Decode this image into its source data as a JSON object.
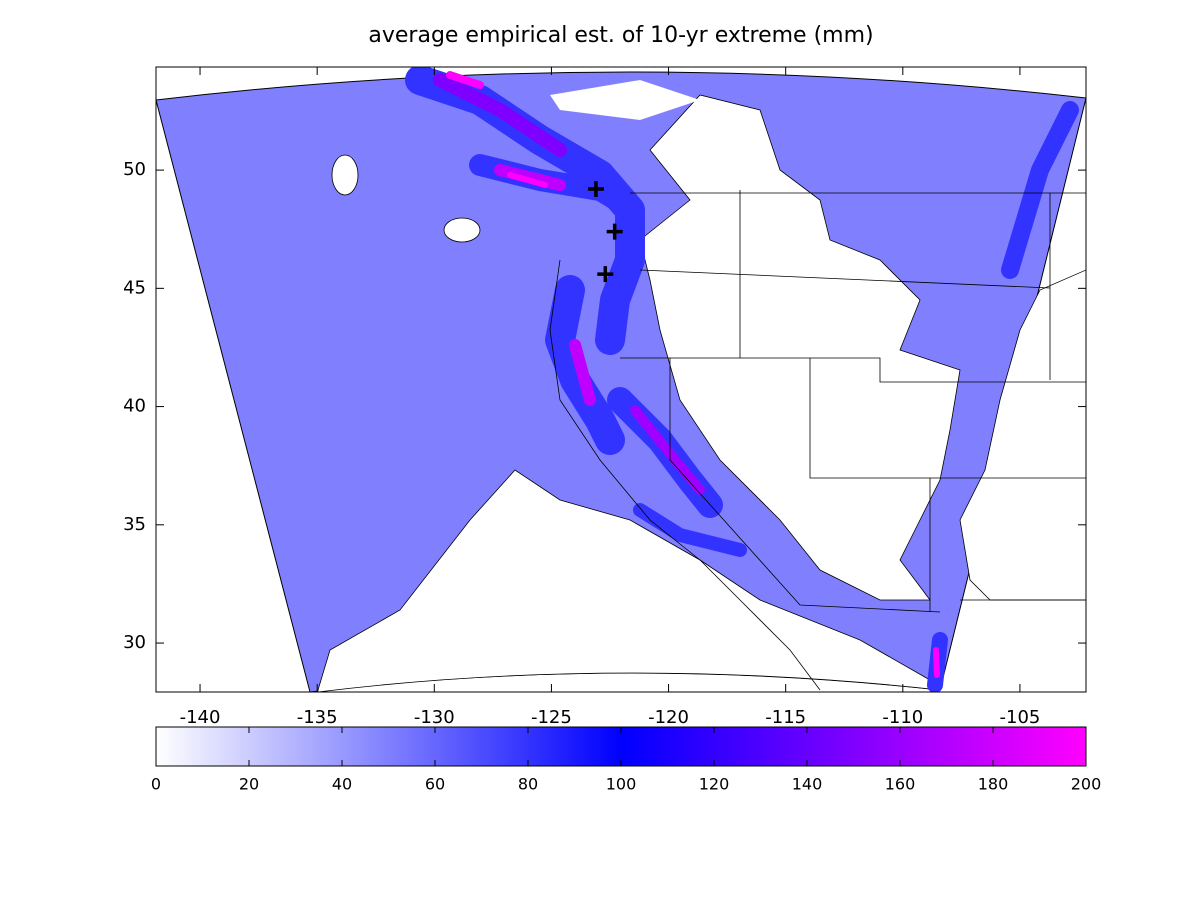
{
  "chart_data": {
    "type": "contour-map",
    "title": "average empirical est. of 10-yr extreme (mm)",
    "xlim": [
      -141.88,
      -102.18
    ],
    "xticks": [
      -140,
      -135,
      -130,
      -125,
      -120,
      -115,
      -110,
      -105
    ],
    "ylim": [
      27.93,
      54.36
    ],
    "yticks": [
      30,
      35,
      40,
      45,
      50
    ],
    "markers": {
      "x": [
        -123.1,
        -122.3,
        -122.7
      ],
      "y": [
        49.2,
        47.4,
        45.6
      ],
      "color": "#000000"
    },
    "colorbar": {
      "lim": [
        0,
        200
      ],
      "ticks": [
        0,
        20,
        40,
        60,
        80,
        100,
        120,
        140,
        160,
        180,
        200
      ],
      "colors": [
        "#ffffff",
        "#0000ff",
        "#ff00ff"
      ]
    }
  }
}
